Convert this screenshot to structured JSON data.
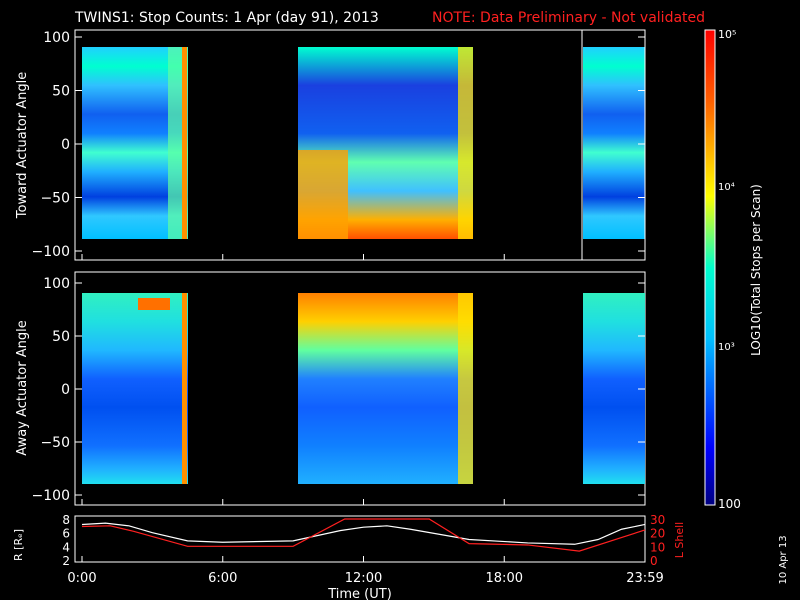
{
  "header": {
    "title": "TWINS1: Stop Counts:  1 Apr (day  91), 2013",
    "note": "NOTE: Data Preliminary - Not validated"
  },
  "chart_data": [
    {
      "type": "heatmap",
      "ylabel": "Toward Actuator Angle",
      "ylim": [
        -100,
        100
      ],
      "yticks": [
        "100",
        "50",
        "0",
        "−50",
        "−100"
      ],
      "xlim_hours": [
        0,
        24
      ],
      "data_segments_hours": [
        [
          0,
          4.5
        ],
        [
          9.3,
          16.9
        ],
        [
          21.3,
          24
        ]
      ],
      "description_of_values": "log10 counts, mostly ~1e3 with higher bands near edges"
    },
    {
      "type": "heatmap",
      "ylabel": "Away Actuator Angle",
      "ylim": [
        -100,
        100
      ],
      "yticks": [
        "100",
        "50",
        "0",
        "−50",
        "−100"
      ],
      "xlim_hours": [
        0,
        24
      ],
      "data_segments_hours": [
        [
          0,
          4.5
        ],
        [
          9.3,
          16.9
        ],
        [
          21.3,
          24
        ]
      ]
    },
    {
      "type": "line",
      "ylabel_left": "R [Rₑ]",
      "ylabel_right": "L Shell",
      "left_ticks": [
        "8",
        "6",
        "4",
        "2"
      ],
      "right_ticks": [
        "30",
        "20",
        "10",
        "0"
      ],
      "series": [
        {
          "name": "R [Rₑ]",
          "color": "#ffffff",
          "x": [
            0,
            1,
            2,
            3,
            4.5,
            6,
            9,
            11,
            12,
            13,
            14,
            16.5,
            19,
            21,
            22,
            23,
            24
          ],
          "y": [
            7.2,
            7.4,
            7.0,
            6.0,
            4.8,
            4.6,
            4.8,
            6.3,
            6.8,
            7.0,
            6.5,
            5.0,
            4.5,
            4.3,
            5.0,
            6.5,
            7.2
          ]
        },
        {
          "name": "L Shell",
          "color": "#ff2020",
          "x": [
            0,
            1.2,
            2.2,
            4.5,
            9,
            11.2,
            14.8,
            16.5,
            19,
            21.2,
            24
          ],
          "y": [
            24.5,
            25,
            21,
            10,
            10,
            30,
            30,
            12,
            11,
            6.5,
            22
          ]
        }
      ],
      "xlabel": "Time (UT)",
      "xticks": [
        "0:00",
        "6:00",
        "12:00",
        "18:00",
        "23:59"
      ]
    }
  ],
  "colorbar": {
    "label": "LOG10(Total Stops per Scan)",
    "ticks": [
      "10⁵",
      "10⁴",
      "10³",
      "100"
    ]
  },
  "side_date": "10 Apr 13"
}
